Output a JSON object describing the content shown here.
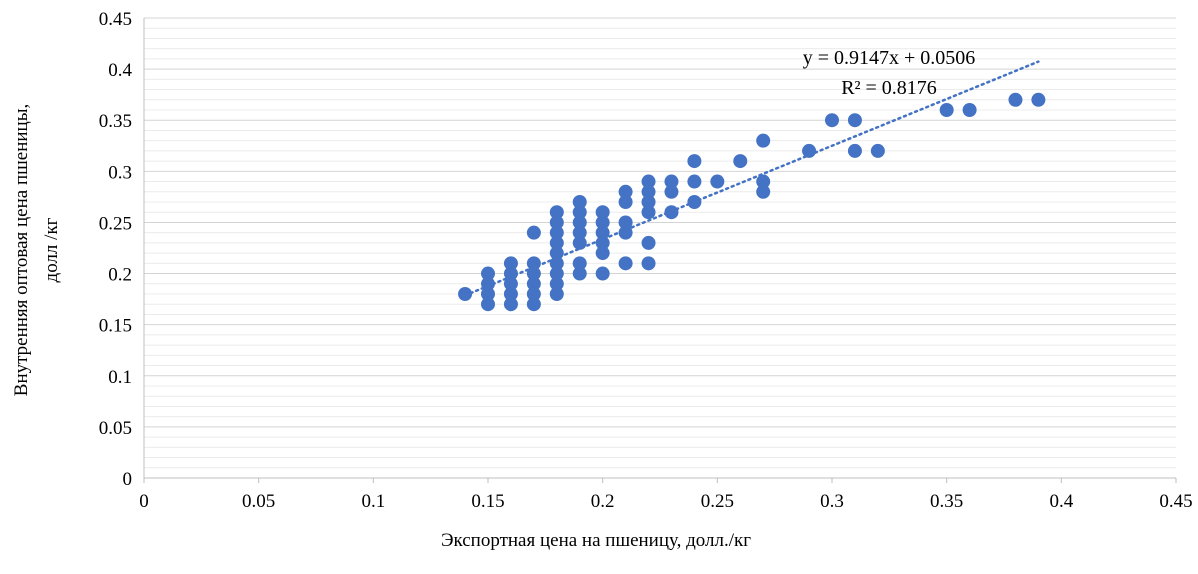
{
  "chart_data": {
    "type": "scatter",
    "xlabel": "Экспортная цена на пшеницу, долл./кг",
    "ylabel_line1": "Внутренняя оптовая цена пшеницы,",
    "ylabel_line2": "долл /кг",
    "xlim": [
      0,
      0.45
    ],
    "ylim": [
      0,
      0.45
    ],
    "x_ticks": [
      "0",
      "0.05",
      "0.1",
      "0.15",
      "0.2",
      "0.25",
      "0.3",
      "0.35",
      "0.4",
      "0.45"
    ],
    "y_ticks": [
      "0",
      "0.05",
      "0.1",
      "0.15",
      "0.2",
      "0.25",
      "0.3",
      "0.35",
      "0.4",
      "0.45"
    ],
    "grid": "horizontal",
    "colors": {
      "points": "#4472C4",
      "trendline": "#4472C4",
      "grid": "#d9d9d9"
    },
    "trendline": {
      "type": "linear",
      "slope": 0.9147,
      "intercept": 0.0506,
      "x_range": [
        0.14,
        0.39
      ],
      "equation": "y = 0.9147x + 0.0506",
      "r_squared": "R² = 0.8176"
    },
    "points": [
      [
        0.14,
        0.18
      ],
      [
        0.15,
        0.17
      ],
      [
        0.15,
        0.18
      ],
      [
        0.15,
        0.19
      ],
      [
        0.15,
        0.2
      ],
      [
        0.16,
        0.17
      ],
      [
        0.16,
        0.18
      ],
      [
        0.16,
        0.19
      ],
      [
        0.16,
        0.2
      ],
      [
        0.16,
        0.21
      ],
      [
        0.17,
        0.17
      ],
      [
        0.17,
        0.18
      ],
      [
        0.17,
        0.19
      ],
      [
        0.17,
        0.2
      ],
      [
        0.17,
        0.21
      ],
      [
        0.17,
        0.24
      ],
      [
        0.18,
        0.18
      ],
      [
        0.18,
        0.19
      ],
      [
        0.18,
        0.2
      ],
      [
        0.18,
        0.21
      ],
      [
        0.18,
        0.22
      ],
      [
        0.18,
        0.23
      ],
      [
        0.18,
        0.24
      ],
      [
        0.18,
        0.25
      ],
      [
        0.18,
        0.26
      ],
      [
        0.19,
        0.2
      ],
      [
        0.19,
        0.21
      ],
      [
        0.19,
        0.23
      ],
      [
        0.19,
        0.24
      ],
      [
        0.19,
        0.25
      ],
      [
        0.19,
        0.26
      ],
      [
        0.19,
        0.27
      ],
      [
        0.2,
        0.2
      ],
      [
        0.2,
        0.22
      ],
      [
        0.2,
        0.23
      ],
      [
        0.2,
        0.24
      ],
      [
        0.2,
        0.25
      ],
      [
        0.2,
        0.26
      ],
      [
        0.21,
        0.21
      ],
      [
        0.21,
        0.24
      ],
      [
        0.21,
        0.25
      ],
      [
        0.21,
        0.27
      ],
      [
        0.21,
        0.28
      ],
      [
        0.22,
        0.21
      ],
      [
        0.22,
        0.23
      ],
      [
        0.22,
        0.26
      ],
      [
        0.22,
        0.27
      ],
      [
        0.22,
        0.28
      ],
      [
        0.22,
        0.29
      ],
      [
        0.23,
        0.26
      ],
      [
        0.23,
        0.28
      ],
      [
        0.23,
        0.29
      ],
      [
        0.24,
        0.27
      ],
      [
        0.24,
        0.29
      ],
      [
        0.24,
        0.31
      ],
      [
        0.25,
        0.29
      ],
      [
        0.26,
        0.31
      ],
      [
        0.27,
        0.28
      ],
      [
        0.27,
        0.29
      ],
      [
        0.27,
        0.33
      ],
      [
        0.29,
        0.32
      ],
      [
        0.3,
        0.35
      ],
      [
        0.31,
        0.32
      ],
      [
        0.31,
        0.35
      ],
      [
        0.32,
        0.32
      ],
      [
        0.35,
        0.36
      ],
      [
        0.36,
        0.36
      ],
      [
        0.38,
        0.37
      ],
      [
        0.39,
        0.37
      ]
    ]
  }
}
